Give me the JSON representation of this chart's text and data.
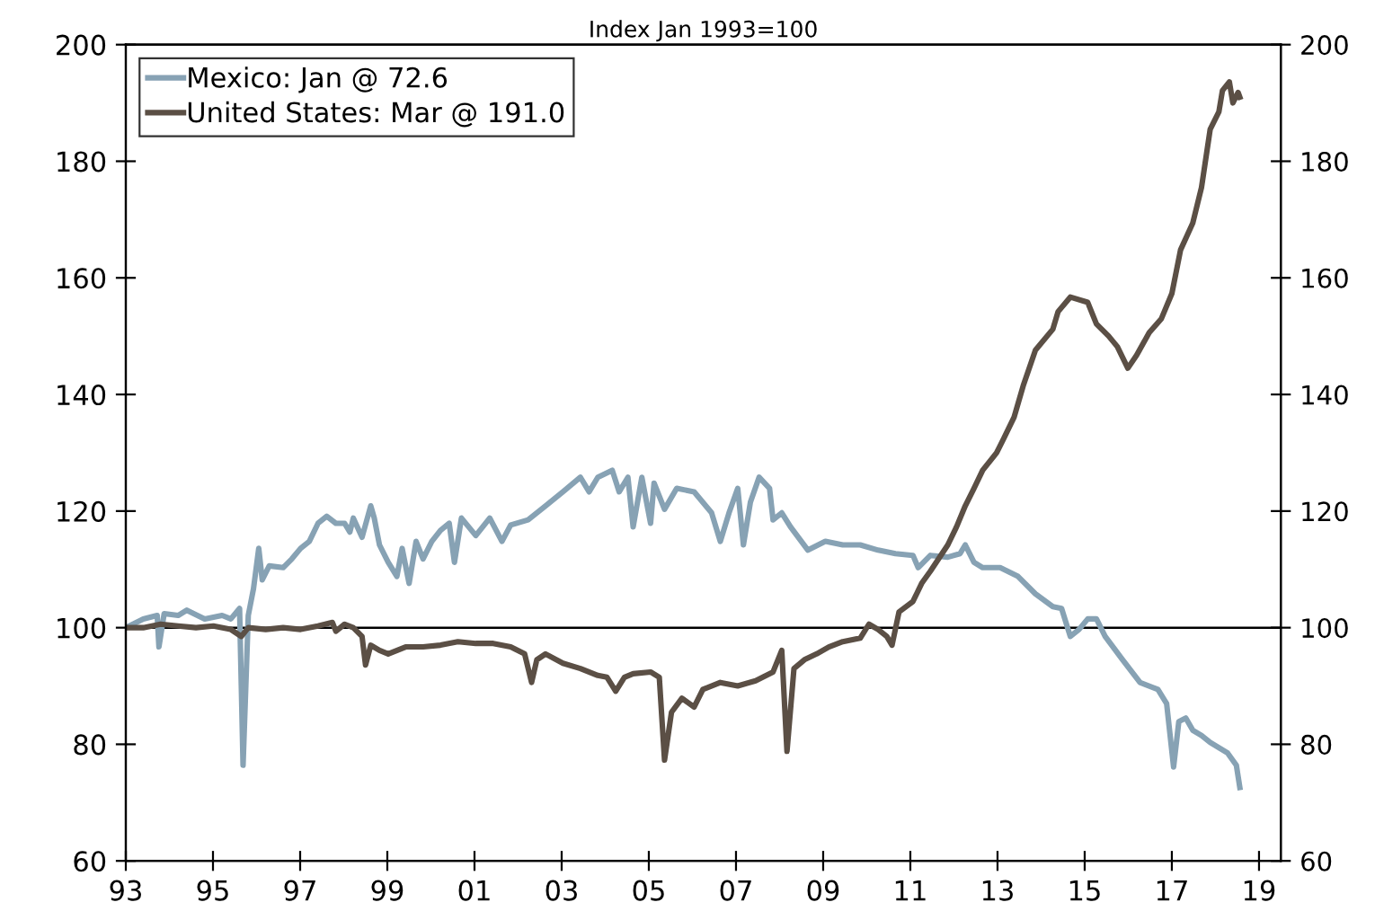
{
  "chart_data": {
    "type": "line",
    "title": "Index Jan 1993=100",
    "xlim": [
      1993,
      2019.5
    ],
    "xticks": [
      {
        "value": 1993,
        "label": "93"
      },
      {
        "value": 1995,
        "label": "95"
      },
      {
        "value": 1997,
        "label": "97"
      },
      {
        "value": 1999,
        "label": "99"
      },
      {
        "value": 2001,
        "label": "01"
      },
      {
        "value": 2003,
        "label": "03"
      },
      {
        "value": 2005,
        "label": "05"
      },
      {
        "value": 2007,
        "label": "07"
      },
      {
        "value": 2009,
        "label": "09"
      },
      {
        "value": 2011,
        "label": "11"
      },
      {
        "value": 2013,
        "label": "13"
      },
      {
        "value": 2015,
        "label": "15"
      },
      {
        "value": 2017,
        "label": "17"
      },
      {
        "value": 2019,
        "label": "19"
      }
    ],
    "ylim": [
      60,
      200
    ],
    "yticks": [
      60,
      80,
      100,
      120,
      140,
      160,
      180,
      200
    ],
    "y2lim": [
      60,
      200
    ],
    "y2ticks": [
      60,
      80,
      100,
      120,
      140,
      160,
      180,
      200
    ],
    "grid": false,
    "legend": "top left",
    "line_style": "solid",
    "marker": "none",
    "ref_lines": [
      {
        "axis": "y",
        "value": 100,
        "color": "#000000"
      }
    ],
    "series": [
      {
        "name": "Mexico: Jan @ 72.6",
        "color": "#87a2b4",
        "x": [
          1993.0,
          1993.4,
          1993.72,
          1993.76,
          1993.88,
          1994.2,
          1994.4,
          1994.81,
          1995.21,
          1995.41,
          1995.61,
          1995.69,
          1995.81,
          1995.93,
          1996.05,
          1996.13,
          1996.29,
          1996.61,
          1996.81,
          1997.01,
          1997.21,
          1997.41,
          1997.61,
          1997.82,
          1998.02,
          1998.14,
          1998.22,
          1998.42,
          1998.62,
          1998.7,
          1998.82,
          1999.02,
          1999.22,
          1999.34,
          1999.5,
          1999.66,
          1999.82,
          2000.02,
          2000.22,
          2000.42,
          2000.54,
          2000.7,
          2001.03,
          2001.35,
          2001.63,
          2001.83,
          2002.23,
          2002.63,
          2003.03,
          2003.43,
          2003.63,
          2003.83,
          2004.16,
          2004.32,
          2004.52,
          2004.64,
          2004.84,
          2005.04,
          2005.12,
          2005.36,
          2005.64,
          2006.04,
          2006.44,
          2006.64,
          2006.84,
          2007.04,
          2007.17,
          2007.33,
          2007.53,
          2007.77,
          2007.85,
          2008.05,
          2008.25,
          2008.65,
          2009.05,
          2009.45,
          2009.85,
          2010.26,
          2010.66,
          2011.06,
          2011.18,
          2011.46,
          2011.86,
          2012.14,
          2012.26,
          2012.46,
          2012.66,
          2013.06,
          2013.47,
          2013.87,
          2014.27,
          2014.47,
          2014.67,
          2014.87,
          2015.07,
          2015.27,
          2015.47,
          2015.87,
          2016.27,
          2016.68,
          2016.88,
          2017.04,
          2017.16,
          2017.32,
          2017.48,
          2017.68,
          2017.88,
          2018.28,
          2018.48,
          2018.56
        ],
        "values": [
          100.0,
          101.5,
          102.1,
          96.7,
          102.4,
          102.1,
          103.0,
          101.5,
          102.1,
          101.5,
          103.3,
          76.4,
          102.1,
          106.7,
          113.6,
          108.2,
          110.6,
          110.3,
          111.8,
          113.6,
          114.8,
          117.9,
          119.1,
          117.9,
          117.9,
          116.4,
          118.8,
          115.5,
          120.9,
          118.8,
          114.2,
          111.2,
          108.8,
          113.6,
          107.6,
          114.8,
          111.8,
          114.8,
          116.7,
          117.9,
          111.2,
          118.8,
          115.8,
          118.8,
          114.8,
          117.6,
          118.5,
          120.9,
          123.3,
          125.8,
          123.3,
          125.8,
          127.0,
          123.3,
          125.8,
          117.3,
          125.8,
          117.9,
          124.8,
          120.3,
          123.9,
          123.3,
          119.7,
          114.8,
          119.7,
          123.9,
          114.2,
          121.5,
          125.8,
          123.9,
          118.5,
          119.7,
          117.3,
          113.3,
          114.8,
          114.2,
          114.2,
          113.3,
          112.7,
          112.4,
          110.3,
          112.4,
          112.1,
          112.7,
          114.2,
          111.2,
          110.3,
          110.3,
          108.8,
          105.8,
          103.6,
          103.3,
          98.5,
          99.7,
          101.5,
          101.5,
          98.5,
          94.5,
          90.6,
          89.4,
          87.0,
          76.1,
          83.9,
          84.5,
          82.4,
          81.5,
          80.3,
          78.5,
          76.4,
          72.6
        ]
      },
      {
        "name": "United States: Mar @ 191.0",
        "color": "#5b4f45",
        "x": [
          1993.0,
          1993.4,
          1993.8,
          1994.2,
          1994.61,
          1995.01,
          1995.41,
          1995.65,
          1995.81,
          1996.21,
          1996.61,
          1997.01,
          1997.41,
          1997.74,
          1997.82,
          1998.02,
          1998.22,
          1998.42,
          1998.5,
          1998.62,
          1998.82,
          1999.02,
          1999.42,
          1999.82,
          2000.22,
          2000.62,
          2001.03,
          2001.43,
          2001.83,
          2002.15,
          2002.31,
          2002.43,
          2002.63,
          2003.03,
          2003.43,
          2003.83,
          2004.04,
          2004.24,
          2004.44,
          2004.64,
          2005.04,
          2005.24,
          2005.36,
          2005.52,
          2005.76,
          2006.04,
          2006.24,
          2006.64,
          2007.04,
          2007.45,
          2007.85,
          2008.05,
          2008.17,
          2008.33,
          2008.57,
          2008.85,
          2009.13,
          2009.45,
          2009.85,
          2010.05,
          2010.26,
          2010.46,
          2010.58,
          2010.74,
          2011.06,
          2011.26,
          2011.46,
          2011.86,
          2012.06,
          2012.26,
          2012.46,
          2012.66,
          2012.98,
          2013.14,
          2013.38,
          2013.59,
          2013.87,
          2014.27,
          2014.39,
          2014.67,
          2015.07,
          2015.27,
          2015.55,
          2015.75,
          2015.99,
          2016.19,
          2016.48,
          2016.76,
          2017.0,
          2017.2,
          2017.48,
          2017.68,
          2017.88,
          2018.08,
          2018.16,
          2018.32,
          2018.4,
          2018.52,
          2018.56
        ],
        "values": [
          100.0,
          100.0,
          100.6,
          100.3,
          100.0,
          100.3,
          99.7,
          98.5,
          100.0,
          99.7,
          100.0,
          99.7,
          100.3,
          100.9,
          99.4,
          100.6,
          100.0,
          98.5,
          93.6,
          97.0,
          96.1,
          95.5,
          96.7,
          96.7,
          97.0,
          97.6,
          97.3,
          97.3,
          96.7,
          95.5,
          90.6,
          94.5,
          95.5,
          93.9,
          93.0,
          91.8,
          91.5,
          89.1,
          91.5,
          92.1,
          92.4,
          91.5,
          77.3,
          85.5,
          87.9,
          86.4,
          89.4,
          90.6,
          90.0,
          90.9,
          92.4,
          96.1,
          78.8,
          93.0,
          94.5,
          95.5,
          96.7,
          97.6,
          98.2,
          100.6,
          99.7,
          98.5,
          97.0,
          102.7,
          104.5,
          107.6,
          109.7,
          114.2,
          117.3,
          120.9,
          123.9,
          127.0,
          130.0,
          132.4,
          136.1,
          141.5,
          147.6,
          151.2,
          154.2,
          156.7,
          155.8,
          152.1,
          150.0,
          148.2,
          144.5,
          146.7,
          150.6,
          153.0,
          157.3,
          164.8,
          169.4,
          175.5,
          185.5,
          188.5,
          192.1,
          193.6,
          190.0,
          191.8,
          191.0
        ]
      }
    ]
  }
}
